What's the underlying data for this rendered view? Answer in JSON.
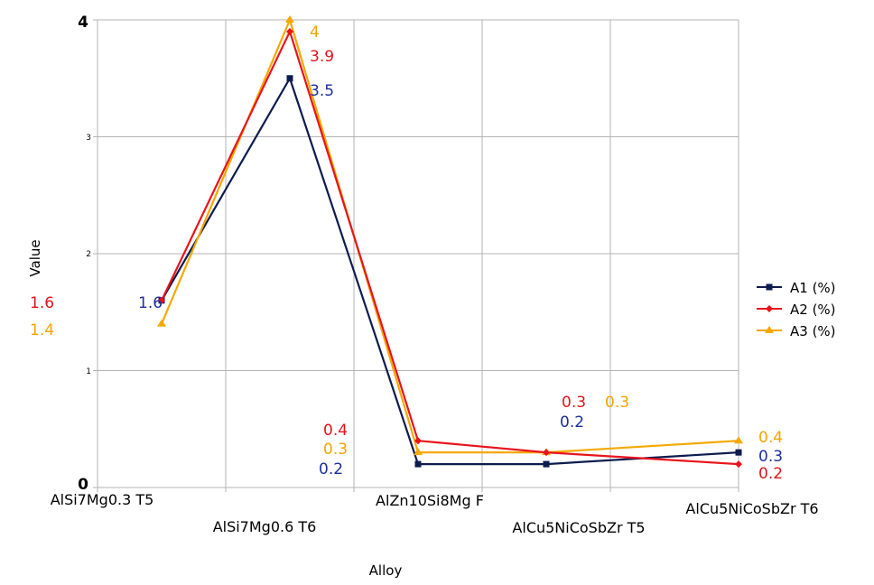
{
  "chart_data": {
    "type": "line",
    "title": "",
    "xlabel": "Alloy",
    "ylabel": "Value",
    "ylim": [
      0,
      4
    ],
    "yticks": [
      "0",
      "1",
      "2",
      "3",
      "4"
    ],
    "grid": true,
    "legend_position": "right",
    "categories": [
      "AlSi7Mg0.3 T5",
      "AlSi7Mg0.6 T6",
      "AlZn10Si8Mg F",
      "AlCu5NiCoSbZr T5",
      "AlCu5NiCoSbZr T6"
    ],
    "series": [
      {
        "name": "A1 (%)",
        "color": "#0d1b4f",
        "marker": "square",
        "label_color": "#1c2f99",
        "values": [
          1.6,
          3.5,
          0.2,
          0.2,
          0.3
        ],
        "labels": [
          "1.6",
          "3.5",
          "0.2",
          "0.2",
          "0.3"
        ]
      },
      {
        "name": "A2 (%)",
        "color": "#e8141b",
        "marker": "diamond",
        "label_color": "#e0141b",
        "values": [
          1.6,
          3.9,
          0.4,
          0.3,
          0.2
        ],
        "labels": [
          "1.6",
          "3.9",
          "0.4",
          "0.3",
          "0.2"
        ]
      },
      {
        "name": "A3 (%)",
        "color": "#f5a800",
        "marker": "triangle",
        "label_color": "#f5a300",
        "values": [
          1.4,
          4.0,
          0.3,
          0.3,
          0.4
        ],
        "labels": [
          "1.4",
          "4",
          "0.3",
          "0.3",
          "0.4"
        ]
      }
    ]
  }
}
